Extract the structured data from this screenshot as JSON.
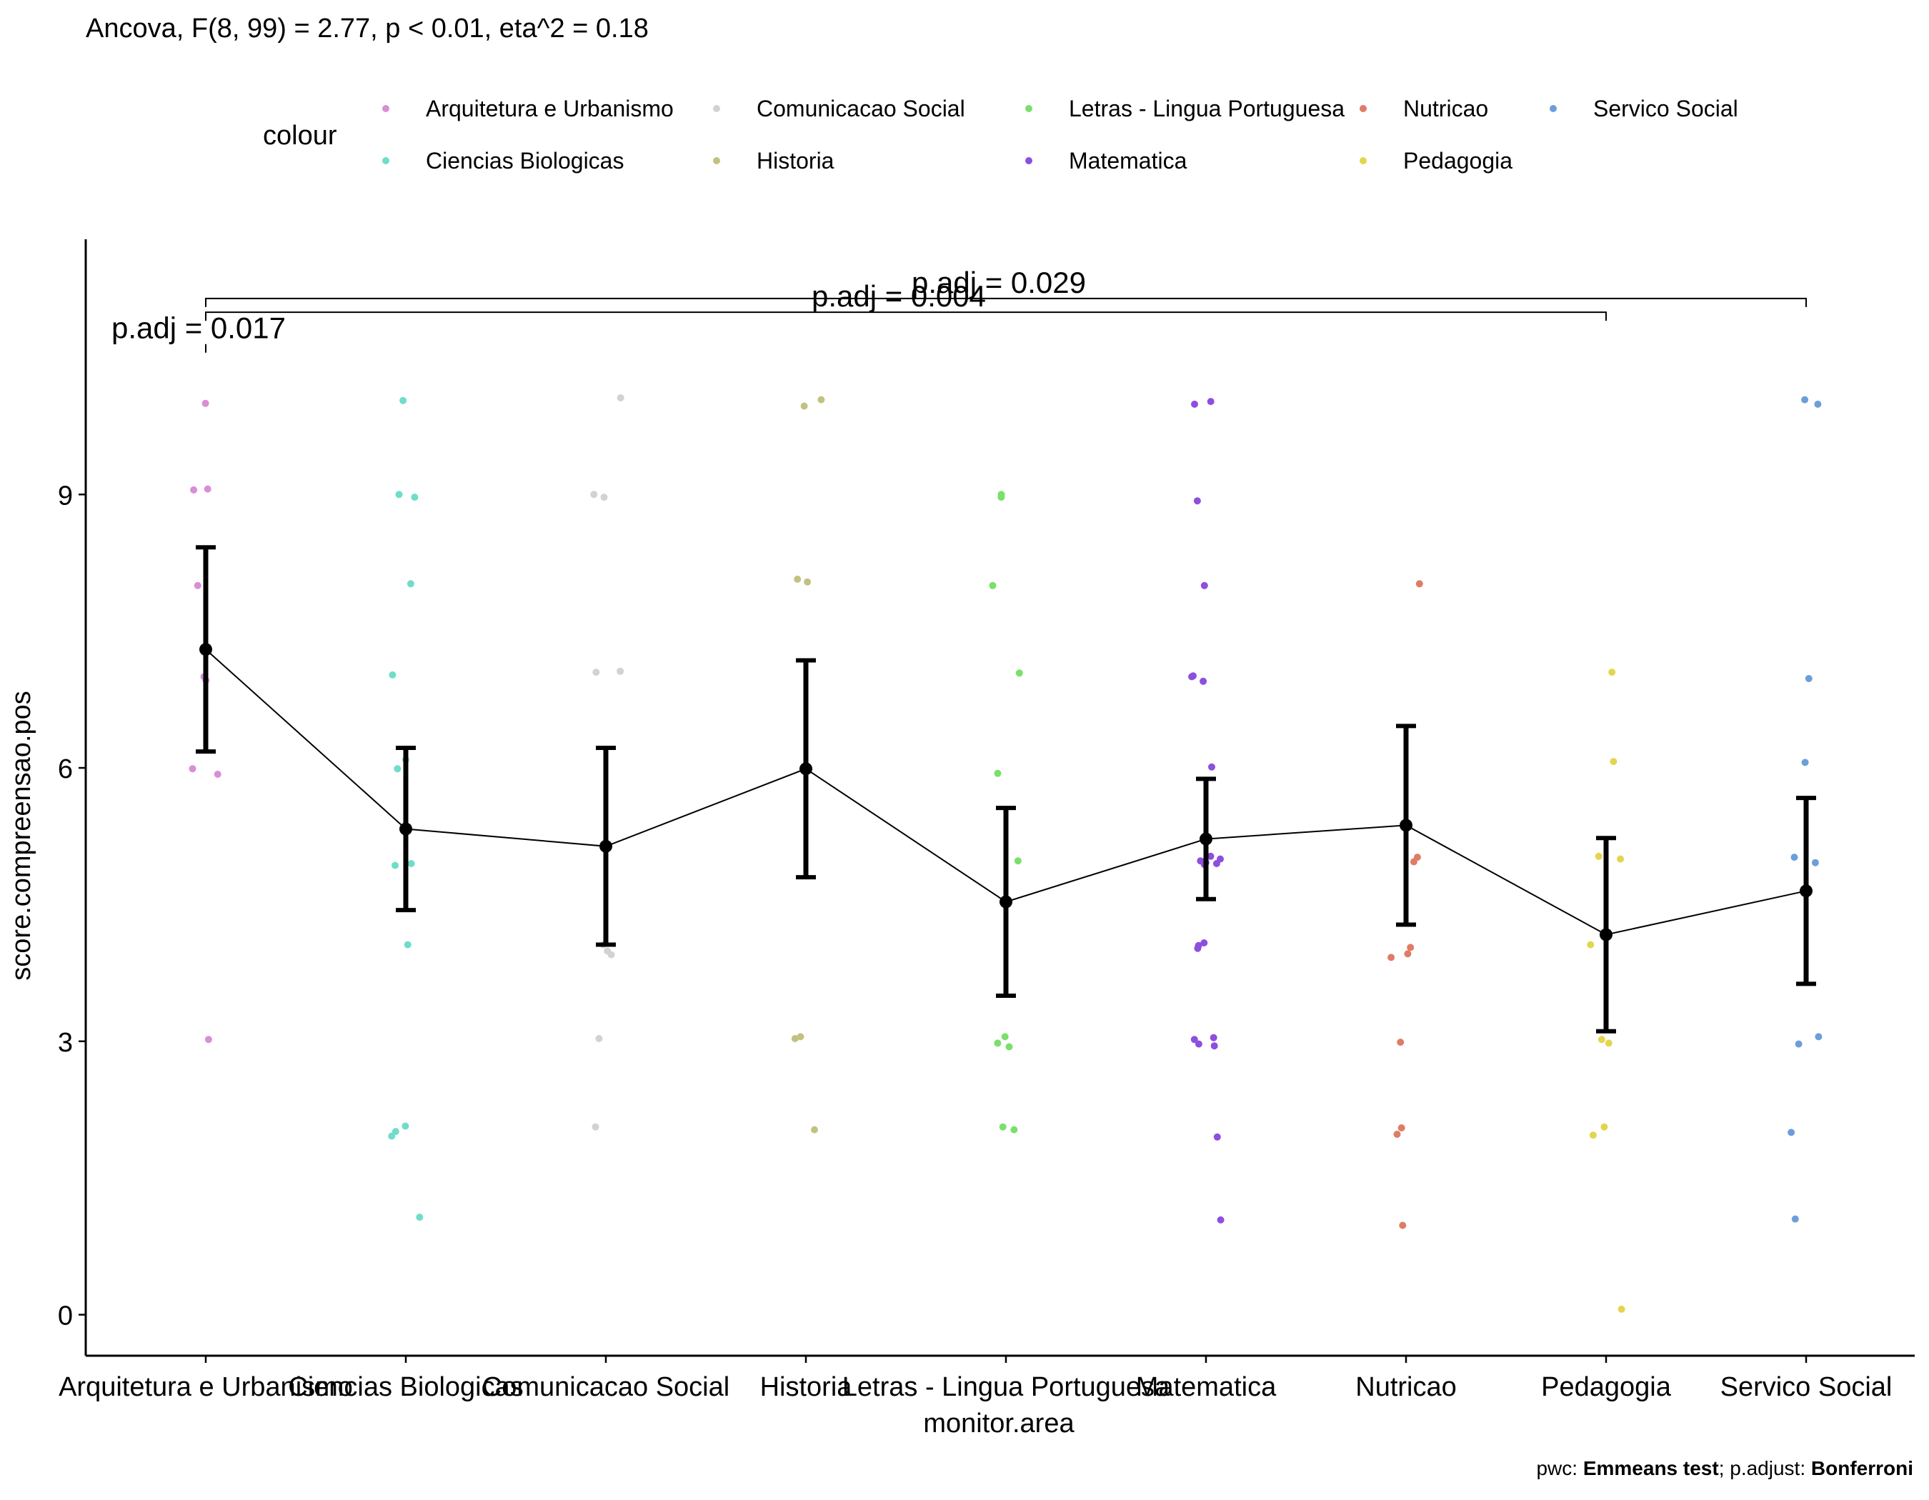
{
  "chart_data": {
    "type": "scatter",
    "title": "Ancova, F(8, 99) = 2.77, p < 0.01, eta^2 = 0.18",
    "xlabel": "monitor.area",
    "ylabel": "score.compreensao.pos",
    "ylim": [
      -0.45,
      11.8
    ],
    "yticks": [
      0,
      3,
      6,
      9
    ],
    "grid": false,
    "legend": {
      "title": "colour",
      "placement": "top"
    },
    "categories": [
      "Arquitetura e Urbanismo",
      "Ciencias Biologicas",
      "Comunicacao Social",
      "Historia",
      "Letras - Lingua Portuguesa",
      "Matematica",
      "Nutricao",
      "Pedagogia",
      "Servico Social"
    ],
    "colors": [
      "#D98ED6",
      "#6FDDC9",
      "#D2D2D2",
      "#C3C181",
      "#7ADF6B",
      "#8D4FDE",
      "#E07B66",
      "#E3D64C",
      "#6D9EDA"
    ],
    "points": [
      [
        10.0,
        9.06,
        9.05,
        8.0,
        7.0,
        6.96,
        5.99,
        5.93,
        3.02
      ],
      [
        10.03,
        9.0,
        8.97,
        8.02,
        7.02,
        6.09,
        5.99,
        4.95,
        4.93,
        4.06,
        2.07,
        2.01,
        1.96,
        1.07
      ],
      [
        10.06,
        9.0,
        8.97,
        7.06,
        7.05,
        4.06,
        3.99,
        3.95,
        3.03,
        2.06
      ],
      [
        10.04,
        9.97,
        8.07,
        8.04,
        3.05,
        3.03,
        2.03
      ],
      [
        9.0,
        8.97,
        8.0,
        7.04,
        5.94,
        4.98,
        3.05,
        2.98,
        2.94,
        2.06,
        2.03
      ],
      [
        10.02,
        9.99,
        8.93,
        8.0,
        7.01,
        7.0,
        6.95,
        6.01,
        5.03,
        5.0,
        4.98,
        4.97,
        4.96,
        4.96,
        4.95,
        4.94,
        4.08,
        4.05,
        4.02,
        3.04,
        3.02,
        2.97,
        2.95,
        1.95,
        1.04
      ],
      [
        8.02,
        5.02,
        4.97,
        4.03,
        3.96,
        3.92,
        2.99,
        2.05,
        1.98,
        0.98
      ],
      [
        7.05,
        6.07,
        5.03,
        5.0,
        4.06,
        3.02,
        2.98,
        2.06,
        1.97,
        0.06
      ],
      [
        10.04,
        9.99,
        6.98,
        6.06,
        5.02,
        4.96,
        3.05,
        2.97,
        2.0,
        1.05
      ]
    ],
    "means": [
      7.3,
      5.33,
      5.14,
      5.99,
      4.53,
      5.22,
      5.37,
      4.17,
      4.65
    ],
    "ci_lower": [
      6.18,
      4.44,
      4.06,
      4.8,
      3.5,
      4.56,
      4.28,
      3.11,
      3.63
    ],
    "ci_upper": [
      8.42,
      6.22,
      6.22,
      7.18,
      5.56,
      5.88,
      6.46,
      5.23,
      5.67
    ],
    "comparisons": [
      {
        "from": "Arquitetura e Urbanismo",
        "to": "Arquitetura e Urbanismo",
        "y": 10.65,
        "label": "p.adj = 0.017"
      },
      {
        "from": "Arquitetura e Urbanismo",
        "to": "Pedagogia",
        "y": 11.0,
        "label": "p.adj = 0.004"
      },
      {
        "from": "Arquitetura e Urbanismo",
        "to": "Servico Social",
        "y": 11.15,
        "label": "p.adj = 0.029"
      }
    ],
    "caption": {
      "pwc_label": "pwc: ",
      "pwc_value": "Emmeans test",
      "sep": "; p.adjust: ",
      "adjust_value": "Bonferroni"
    }
  }
}
